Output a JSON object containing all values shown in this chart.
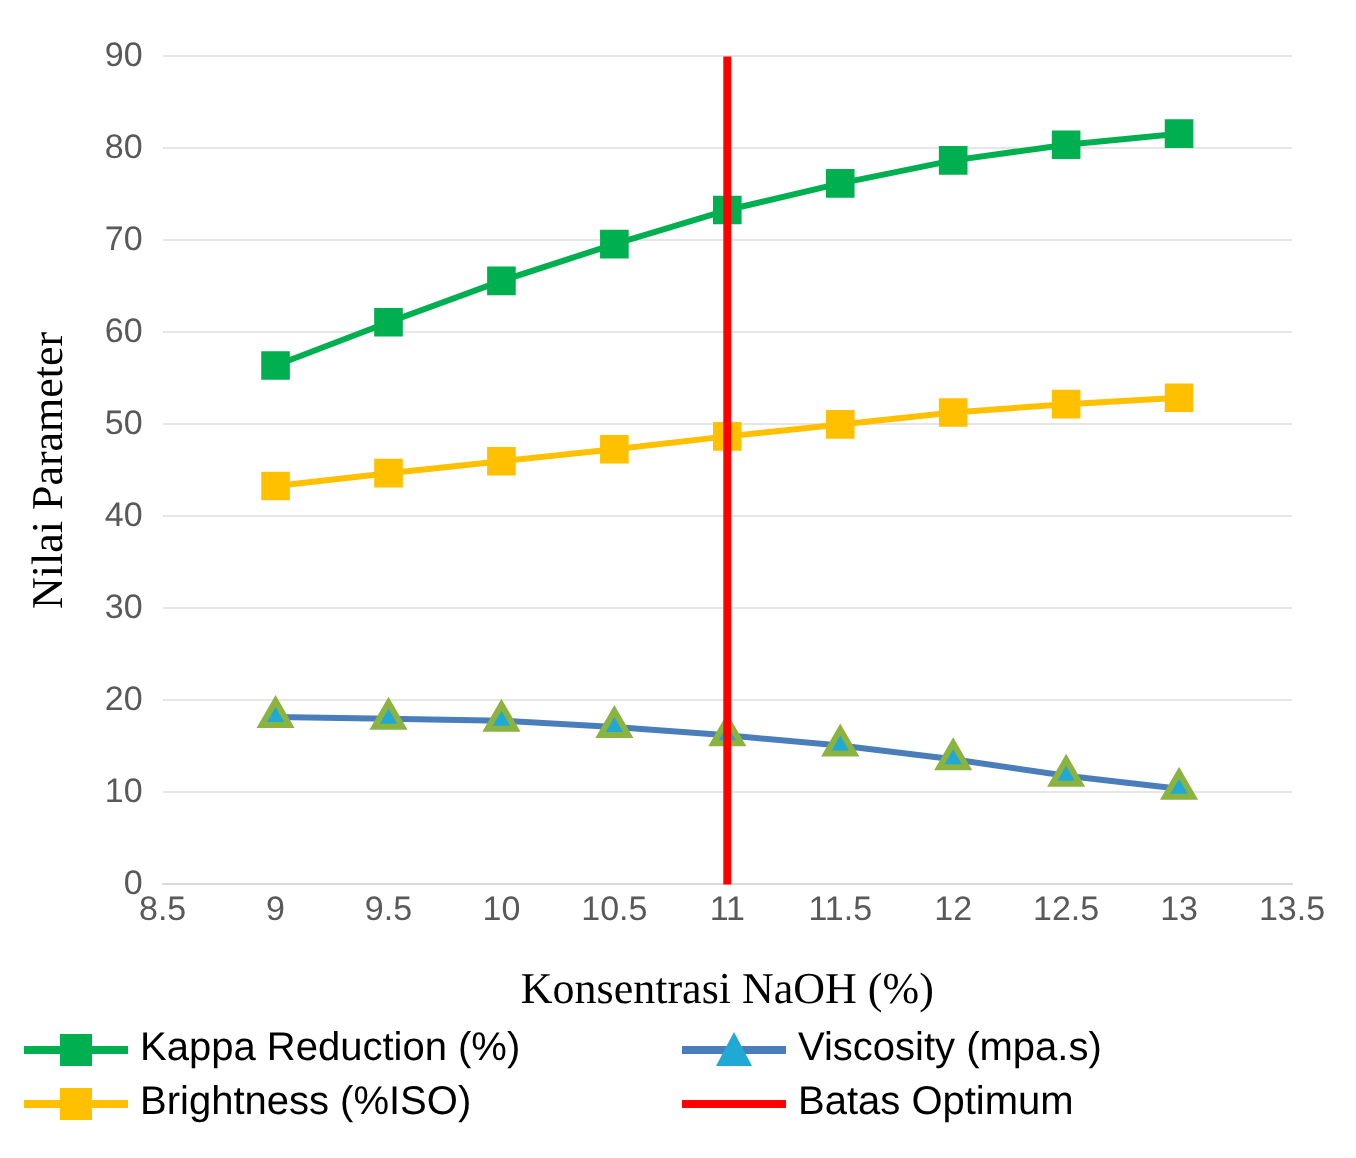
{
  "chart_data": {
    "type": "line",
    "xlabel": "Konsentrasi NaOH (%)",
    "ylabel": "Nilai Parameter",
    "x": [
      9,
      9.5,
      10,
      10.5,
      11,
      11.5,
      12,
      12.5,
      13
    ],
    "xlim": [
      8.5,
      13.5
    ],
    "xticks": [
      8.5,
      9,
      9.5,
      10,
      10.5,
      11,
      11.5,
      12,
      12.5,
      13,
      13.5
    ],
    "ylim": [
      0,
      90
    ],
    "yticks": [
      0,
      10,
      20,
      30,
      40,
      50,
      60,
      70,
      80,
      90
    ],
    "grid": "y",
    "legend": "bottom",
    "series": [
      {
        "name": "Kappa Reduction (%)",
        "color": "#00b050",
        "marker": "square",
        "values": [
          56.4,
          61.1,
          65.6,
          69.6,
          73.3,
          76.2,
          78.7,
          80.4,
          81.6
        ]
      },
      {
        "name": "Viscosity (mpa.s)",
        "color": "#4a7ebb",
        "marker": "triangle",
        "values": [
          18.2,
          18,
          17.8,
          17.1,
          16.2,
          15.1,
          13.6,
          11.8,
          10.4
        ]
      },
      {
        "name": "Brightness (%ISO)",
        "color": "#ffc000",
        "marker": "square",
        "values": [
          43.3,
          44.7,
          46,
          47.3,
          48.7,
          50,
          51.3,
          52.2,
          52.9
        ]
      }
    ],
    "ref_lines": [
      {
        "axis": "x",
        "value": 11,
        "label": "Batas Optimum",
        "color": "#ff0000"
      }
    ]
  }
}
